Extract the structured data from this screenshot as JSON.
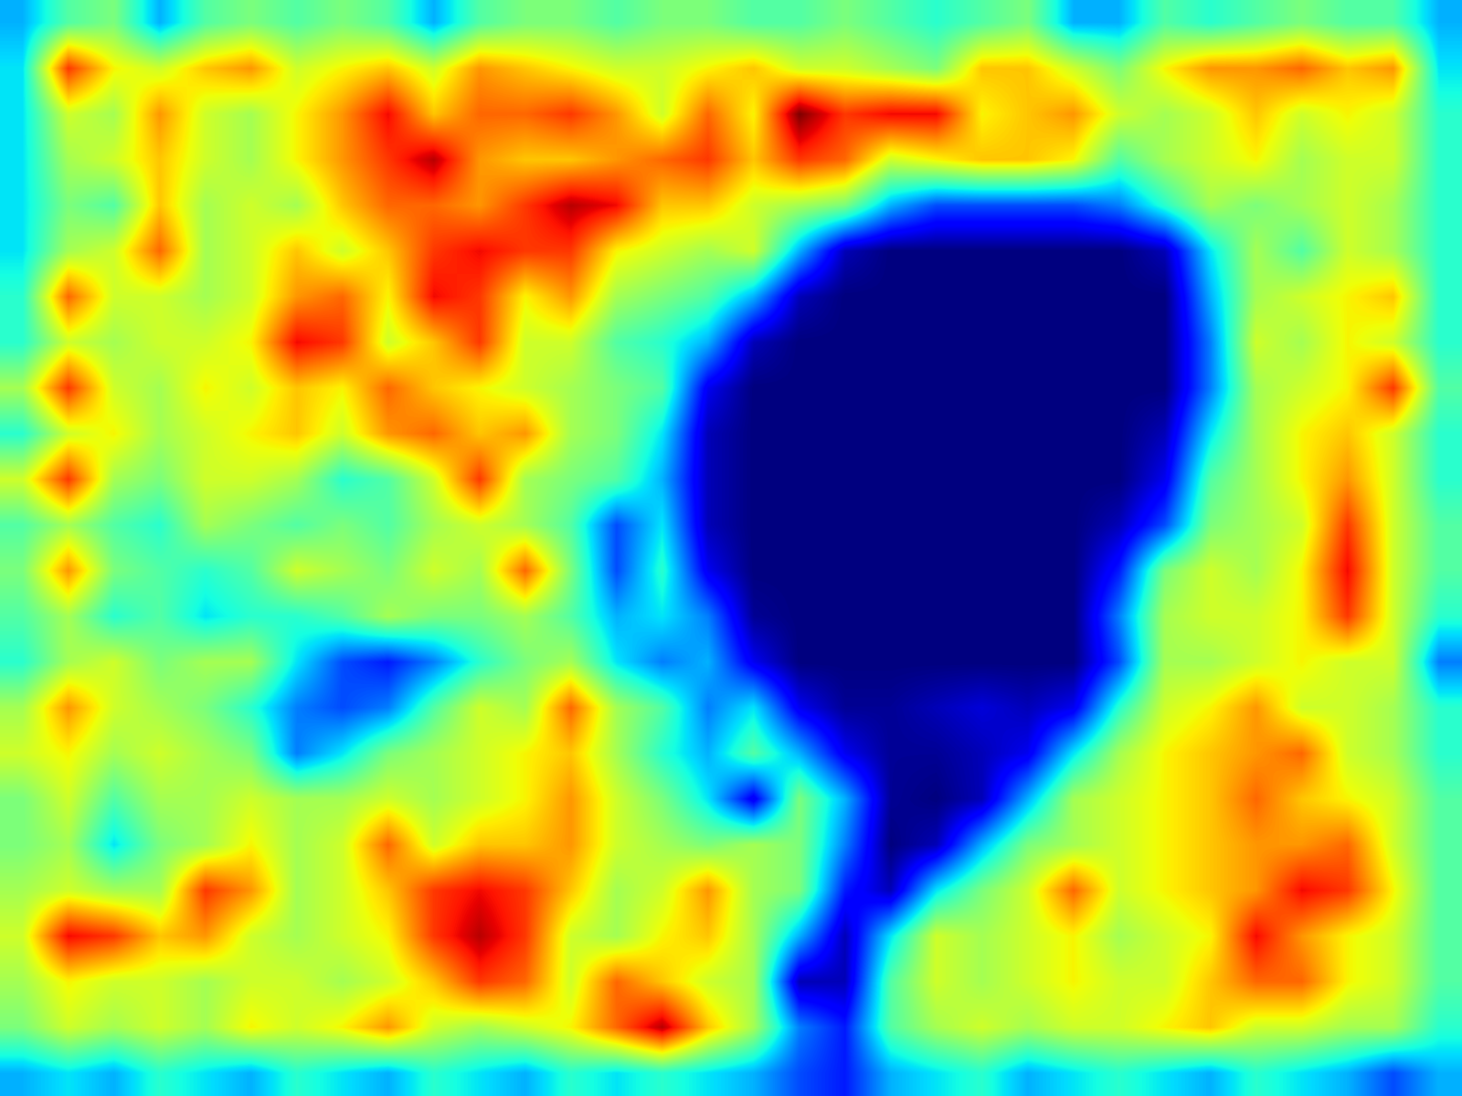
{
  "chart_data": {
    "type": "heatmap",
    "tick_labels": false,
    "zlim": [
      0,
      1
    ],
    "cells": [
      [
        0.3,
        0.45,
        0.5,
        0.3,
        0.45,
        0.5,
        0.45,
        0.5,
        0.45,
        0.3,
        0.45,
        0.5,
        0.5,
        0.45,
        0.5,
        0.5,
        0.45,
        0.45,
        0.5,
        0.45,
        0.4,
        0.45,
        0.5,
        0.3,
        0.3,
        0.45,
        0.4,
        0.45,
        0.5,
        0.45,
        0.45,
        0.3
      ],
      [
        0.35,
        0.85,
        0.65,
        0.6,
        0.7,
        0.75,
        0.6,
        0.65,
        0.7,
        0.6,
        0.75,
        0.7,
        0.65,
        0.6,
        0.6,
        0.65,
        0.7,
        0.6,
        0.6,
        0.55,
        0.5,
        0.7,
        0.7,
        0.6,
        0.5,
        0.65,
        0.75,
        0.75,
        0.8,
        0.7,
        0.75,
        0.35
      ],
      [
        0.35,
        0.6,
        0.55,
        0.75,
        0.6,
        0.55,
        0.65,
        0.75,
        0.9,
        0.7,
        0.8,
        0.8,
        0.85,
        0.75,
        0.6,
        0.8,
        0.65,
        1.0,
        0.85,
        0.9,
        0.9,
        0.65,
        0.7,
        0.75,
        0.6,
        0.55,
        0.6,
        0.7,
        0.6,
        0.65,
        0.6,
        0.4
      ],
      [
        0.35,
        0.55,
        0.6,
        0.7,
        0.6,
        0.55,
        0.65,
        0.75,
        0.85,
        0.95,
        0.75,
        0.7,
        0.7,
        0.75,
        0.8,
        0.85,
        0.7,
        0.85,
        0.8,
        0.6,
        0.65,
        0.7,
        0.7,
        0.65,
        0.45,
        0.55,
        0.6,
        0.65,
        0.55,
        0.6,
        0.6,
        0.4
      ],
      [
        0.35,
        0.5,
        0.45,
        0.7,
        0.55,
        0.6,
        0.55,
        0.7,
        0.8,
        0.8,
        0.75,
        0.85,
        0.95,
        0.9,
        0.7,
        0.7,
        0.6,
        0.55,
        0.5,
        0.3,
        0.2,
        0.2,
        0.2,
        0.2,
        0.25,
        0.4,
        0.55,
        0.5,
        0.55,
        0.6,
        0.55,
        0.4
      ],
      [
        0.35,
        0.55,
        0.6,
        0.8,
        0.55,
        0.6,
        0.7,
        0.6,
        0.7,
        0.85,
        0.9,
        0.85,
        0.85,
        0.65,
        0.6,
        0.55,
        0.6,
        0.3,
        0.05,
        0.0,
        0.0,
        0.0,
        0.0,
        0.0,
        0.0,
        0.05,
        0.35,
        0.55,
        0.45,
        0.6,
        0.55,
        0.4
      ],
      [
        0.4,
        0.8,
        0.6,
        0.6,
        0.55,
        0.6,
        0.75,
        0.8,
        0.65,
        0.9,
        0.85,
        0.65,
        0.75,
        0.55,
        0.5,
        0.45,
        0.3,
        0.05,
        0.0,
        0.0,
        0.0,
        0.0,
        0.0,
        0.0,
        0.0,
        0.0,
        0.3,
        0.55,
        0.6,
        0.65,
        0.7,
        0.4
      ],
      [
        0.4,
        0.6,
        0.55,
        0.6,
        0.6,
        0.65,
        0.9,
        0.85,
        0.6,
        0.7,
        0.85,
        0.6,
        0.6,
        0.45,
        0.4,
        0.3,
        0.05,
        0.0,
        0.0,
        0.0,
        0.0,
        0.0,
        0.0,
        0.0,
        0.0,
        0.0,
        0.25,
        0.6,
        0.55,
        0.65,
        0.6,
        0.4
      ],
      [
        0.55,
        0.85,
        0.6,
        0.55,
        0.65,
        0.6,
        0.7,
        0.65,
        0.8,
        0.7,
        0.65,
        0.6,
        0.55,
        0.5,
        0.45,
        0.1,
        0.0,
        0.0,
        0.0,
        0.0,
        0.0,
        0.0,
        0.0,
        0.0,
        0.0,
        0.0,
        0.25,
        0.55,
        0.6,
        0.65,
        0.85,
        0.45
      ],
      [
        0.4,
        0.6,
        0.65,
        0.55,
        0.6,
        0.65,
        0.7,
        0.6,
        0.75,
        0.8,
        0.7,
        0.75,
        0.55,
        0.5,
        0.35,
        0.05,
        0.0,
        0.0,
        0.0,
        0.0,
        0.0,
        0.0,
        0.0,
        0.0,
        0.0,
        0.05,
        0.35,
        0.55,
        0.65,
        0.7,
        0.6,
        0.4
      ],
      [
        0.6,
        0.85,
        0.55,
        0.5,
        0.6,
        0.6,
        0.55,
        0.4,
        0.45,
        0.6,
        0.85,
        0.55,
        0.5,
        0.45,
        0.3,
        0.05,
        0.0,
        0.0,
        0.0,
        0.0,
        0.0,
        0.0,
        0.0,
        0.0,
        0.0,
        0.1,
        0.45,
        0.55,
        0.65,
        0.75,
        0.6,
        0.4
      ],
      [
        0.45,
        0.55,
        0.45,
        0.4,
        0.55,
        0.5,
        0.45,
        0.5,
        0.45,
        0.55,
        0.6,
        0.55,
        0.45,
        0.2,
        0.35,
        0.05,
        0.0,
        0.0,
        0.0,
        0.0,
        0.0,
        0.0,
        0.0,
        0.0,
        0.05,
        0.2,
        0.5,
        0.55,
        0.6,
        0.85,
        0.6,
        0.45
      ],
      [
        0.5,
        0.75,
        0.5,
        0.45,
        0.4,
        0.45,
        0.6,
        0.55,
        0.5,
        0.6,
        0.55,
        0.8,
        0.5,
        0.2,
        0.4,
        0.1,
        0.0,
        0.0,
        0.0,
        0.0,
        0.0,
        0.0,
        0.0,
        0.0,
        0.15,
        0.5,
        0.6,
        0.55,
        0.65,
        0.9,
        0.6,
        0.45
      ],
      [
        0.45,
        0.55,
        0.4,
        0.45,
        0.35,
        0.4,
        0.4,
        0.45,
        0.55,
        0.5,
        0.5,
        0.55,
        0.45,
        0.3,
        0.35,
        0.25,
        0.02,
        0.0,
        0.0,
        0.0,
        0.0,
        0.0,
        0.0,
        0.0,
        0.25,
        0.55,
        0.6,
        0.6,
        0.65,
        0.85,
        0.6,
        0.4
      ],
      [
        0.4,
        0.55,
        0.6,
        0.5,
        0.55,
        0.55,
        0.35,
        0.2,
        0.15,
        0.25,
        0.4,
        0.5,
        0.55,
        0.35,
        0.25,
        0.3,
        0.1,
        0.0,
        0.0,
        0.0,
        0.0,
        0.0,
        0.0,
        0.0,
        0.2,
        0.55,
        0.55,
        0.6,
        0.65,
        0.6,
        0.6,
        0.25
      ],
      [
        0.55,
        0.75,
        0.6,
        0.55,
        0.5,
        0.4,
        0.25,
        0.2,
        0.25,
        0.45,
        0.6,
        0.55,
        0.8,
        0.55,
        0.45,
        0.25,
        0.35,
        0.1,
        0.02,
        0.02,
        0.05,
        0.08,
        0.05,
        0.1,
        0.4,
        0.6,
        0.65,
        0.75,
        0.6,
        0.6,
        0.55,
        0.4
      ],
      [
        0.6,
        0.65,
        0.55,
        0.6,
        0.55,
        0.5,
        0.25,
        0.35,
        0.5,
        0.55,
        0.6,
        0.65,
        0.7,
        0.55,
        0.4,
        0.3,
        0.45,
        0.3,
        0.1,
        0.02,
        0.02,
        0.05,
        0.1,
        0.35,
        0.55,
        0.65,
        0.7,
        0.75,
        0.8,
        0.6,
        0.55,
        0.4
      ],
      [
        0.5,
        0.6,
        0.45,
        0.55,
        0.55,
        0.6,
        0.55,
        0.55,
        0.6,
        0.55,
        0.6,
        0.65,
        0.75,
        0.6,
        0.5,
        0.35,
        0.1,
        0.5,
        0.3,
        0.02,
        0.0,
        0.05,
        0.3,
        0.55,
        0.6,
        0.65,
        0.7,
        0.8,
        0.7,
        0.65,
        0.6,
        0.45
      ],
      [
        0.5,
        0.55,
        0.35,
        0.5,
        0.55,
        0.65,
        0.55,
        0.6,
        0.8,
        0.6,
        0.7,
        0.7,
        0.75,
        0.6,
        0.55,
        0.5,
        0.55,
        0.5,
        0.25,
        0.0,
        0.05,
        0.3,
        0.5,
        0.55,
        0.6,
        0.65,
        0.7,
        0.75,
        0.75,
        0.8,
        0.6,
        0.45
      ],
      [
        0.55,
        0.6,
        0.55,
        0.55,
        0.85,
        0.75,
        0.55,
        0.6,
        0.7,
        0.85,
        0.9,
        0.85,
        0.7,
        0.55,
        0.6,
        0.75,
        0.55,
        0.5,
        0.15,
        0.05,
        0.35,
        0.5,
        0.6,
        0.8,
        0.6,
        0.65,
        0.7,
        0.75,
        0.9,
        0.85,
        0.65,
        0.45
      ],
      [
        0.6,
        0.9,
        0.85,
        0.7,
        0.75,
        0.6,
        0.55,
        0.6,
        0.65,
        0.85,
        0.95,
        0.85,
        0.6,
        0.55,
        0.65,
        0.7,
        0.55,
        0.3,
        0.05,
        0.35,
        0.6,
        0.55,
        0.6,
        0.65,
        0.55,
        0.6,
        0.65,
        0.9,
        0.75,
        0.65,
        0.6,
        0.45
      ],
      [
        0.55,
        0.65,
        0.6,
        0.6,
        0.55,
        0.6,
        0.6,
        0.55,
        0.6,
        0.7,
        0.85,
        0.8,
        0.6,
        0.8,
        0.7,
        0.6,
        0.55,
        0.05,
        0.05,
        0.45,
        0.6,
        0.55,
        0.6,
        0.65,
        0.6,
        0.6,
        0.7,
        0.8,
        0.8,
        0.65,
        0.6,
        0.45
      ],
      [
        0.5,
        0.6,
        0.55,
        0.6,
        0.55,
        0.65,
        0.6,
        0.65,
        0.75,
        0.6,
        0.55,
        0.6,
        0.65,
        0.8,
        0.95,
        0.7,
        0.55,
        0.25,
        0.15,
        0.45,
        0.55,
        0.6,
        0.55,
        0.6,
        0.6,
        0.65,
        0.7,
        0.6,
        0.6,
        0.55,
        0.55,
        0.4
      ],
      [
        0.3,
        0.35,
        0.3,
        0.4,
        0.35,
        0.3,
        0.4,
        0.35,
        0.3,
        0.4,
        0.35,
        0.3,
        0.4,
        0.35,
        0.4,
        0.35,
        0.3,
        0.2,
        0.15,
        0.3,
        0.35,
        0.4,
        0.3,
        0.35,
        0.4,
        0.35,
        0.3,
        0.4,
        0.35,
        0.3,
        0.2,
        0.3
      ]
    ]
  }
}
